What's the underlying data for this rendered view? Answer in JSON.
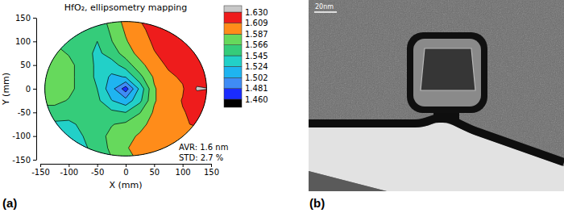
{
  "chart_data": {
    "type": "contour",
    "title": "HfO₂, ellipsometry mapping",
    "x_label": "X (mm)",
    "y_label": "Y (mm)",
    "xlim": [
      -150,
      150
    ],
    "xticks": [
      -150,
      -100,
      -50,
      0,
      50,
      100,
      150
    ],
    "ylim": [
      -150,
      150
    ],
    "yticks": [
      -150,
      -100,
      -50,
      0,
      50,
      100,
      150
    ],
    "x": [
      -150,
      -125,
      -100,
      -75,
      -50,
      -25,
      0,
      25,
      50,
      75,
      100,
      125,
      150
    ],
    "y": [
      150,
      125,
      100,
      75,
      50,
      25,
      0,
      -25,
      -50,
      -75,
      -100,
      -125,
      -150
    ],
    "z": [
      [
        1.55,
        1.55,
        1.55,
        1.545,
        1.555,
        1.575,
        1.595,
        1.61,
        1.62,
        1.625,
        1.625,
        1.625,
        1.625
      ],
      [
        1.56,
        1.56,
        1.555,
        1.545,
        1.55,
        1.57,
        1.59,
        1.605,
        1.615,
        1.62,
        1.622,
        1.622,
        1.622
      ],
      [
        1.565,
        1.565,
        1.56,
        1.55,
        1.545,
        1.565,
        1.585,
        1.6,
        1.612,
        1.618,
        1.62,
        1.622,
        1.622
      ],
      [
        1.57,
        1.57,
        1.565,
        1.555,
        1.54,
        1.555,
        1.575,
        1.595,
        1.608,
        1.615,
        1.62,
        1.622,
        1.622
      ],
      [
        1.575,
        1.575,
        1.57,
        1.56,
        1.54,
        1.535,
        1.555,
        1.58,
        1.6,
        1.612,
        1.618,
        1.622,
        1.625
      ],
      [
        1.575,
        1.575,
        1.57,
        1.56,
        1.54,
        1.52,
        1.525,
        1.56,
        1.59,
        1.605,
        1.612,
        1.622,
        1.625
      ],
      [
        1.575,
        1.575,
        1.57,
        1.56,
        1.545,
        1.51,
        1.47,
        1.53,
        1.585,
        1.6,
        1.607,
        1.632,
        1.63
      ],
      [
        1.57,
        1.57,
        1.565,
        1.56,
        1.55,
        1.525,
        1.51,
        1.54,
        1.585,
        1.6,
        1.61,
        1.62,
        1.62
      ],
      [
        1.56,
        1.56,
        1.555,
        1.555,
        1.555,
        1.55,
        1.545,
        1.565,
        1.59,
        1.6,
        1.608,
        1.613,
        1.615
      ],
      [
        1.545,
        1.54,
        1.54,
        1.55,
        1.56,
        1.565,
        1.57,
        1.58,
        1.595,
        1.603,
        1.608,
        1.61,
        1.61
      ],
      [
        1.53,
        1.525,
        1.53,
        1.545,
        1.56,
        1.57,
        1.58,
        1.59,
        1.598,
        1.603,
        1.605,
        1.605,
        1.605
      ],
      [
        1.52,
        1.52,
        1.525,
        1.54,
        1.555,
        1.57,
        1.585,
        1.595,
        1.6,
        1.603,
        1.603,
        1.603,
        1.603
      ],
      [
        1.515,
        1.515,
        1.52,
        1.535,
        1.55,
        1.565,
        1.58,
        1.59,
        1.598,
        1.6,
        1.6,
        1.6,
        1.6
      ]
    ],
    "wafer_radius": 142,
    "colorbar": {
      "range": [
        1.46,
        1.63
      ],
      "ticks": [
        {
          "value": 1.46,
          "label": "1.460"
        },
        {
          "value": 1.481,
          "label": "1.481"
        },
        {
          "value": 1.502,
          "label": "1.502"
        },
        {
          "value": 1.524,
          "label": "1.524"
        },
        {
          "value": 1.545,
          "label": "1.545"
        },
        {
          "value": 1.566,
          "label": "1.566"
        },
        {
          "value": 1.587,
          "label": "1.587"
        },
        {
          "value": 1.609,
          "label": "1.609"
        },
        {
          "value": 1.63,
          "label": "1.630"
        }
      ],
      "colors": [
        "#000000",
        "#1a2cff",
        "#3f8cf5",
        "#1fb4f0",
        "#22d0c8",
        "#35cc7a",
        "#66d95c",
        "#ff8c1a",
        "#ee1c1c",
        "#c8c8c8"
      ]
    },
    "annotations": [
      "AVR: 1.6 nm",
      "STD: 2.7 %"
    ]
  },
  "panels": [
    "(a)",
    "(b)"
  ],
  "image": {
    "scale_bar": "20nm"
  }
}
